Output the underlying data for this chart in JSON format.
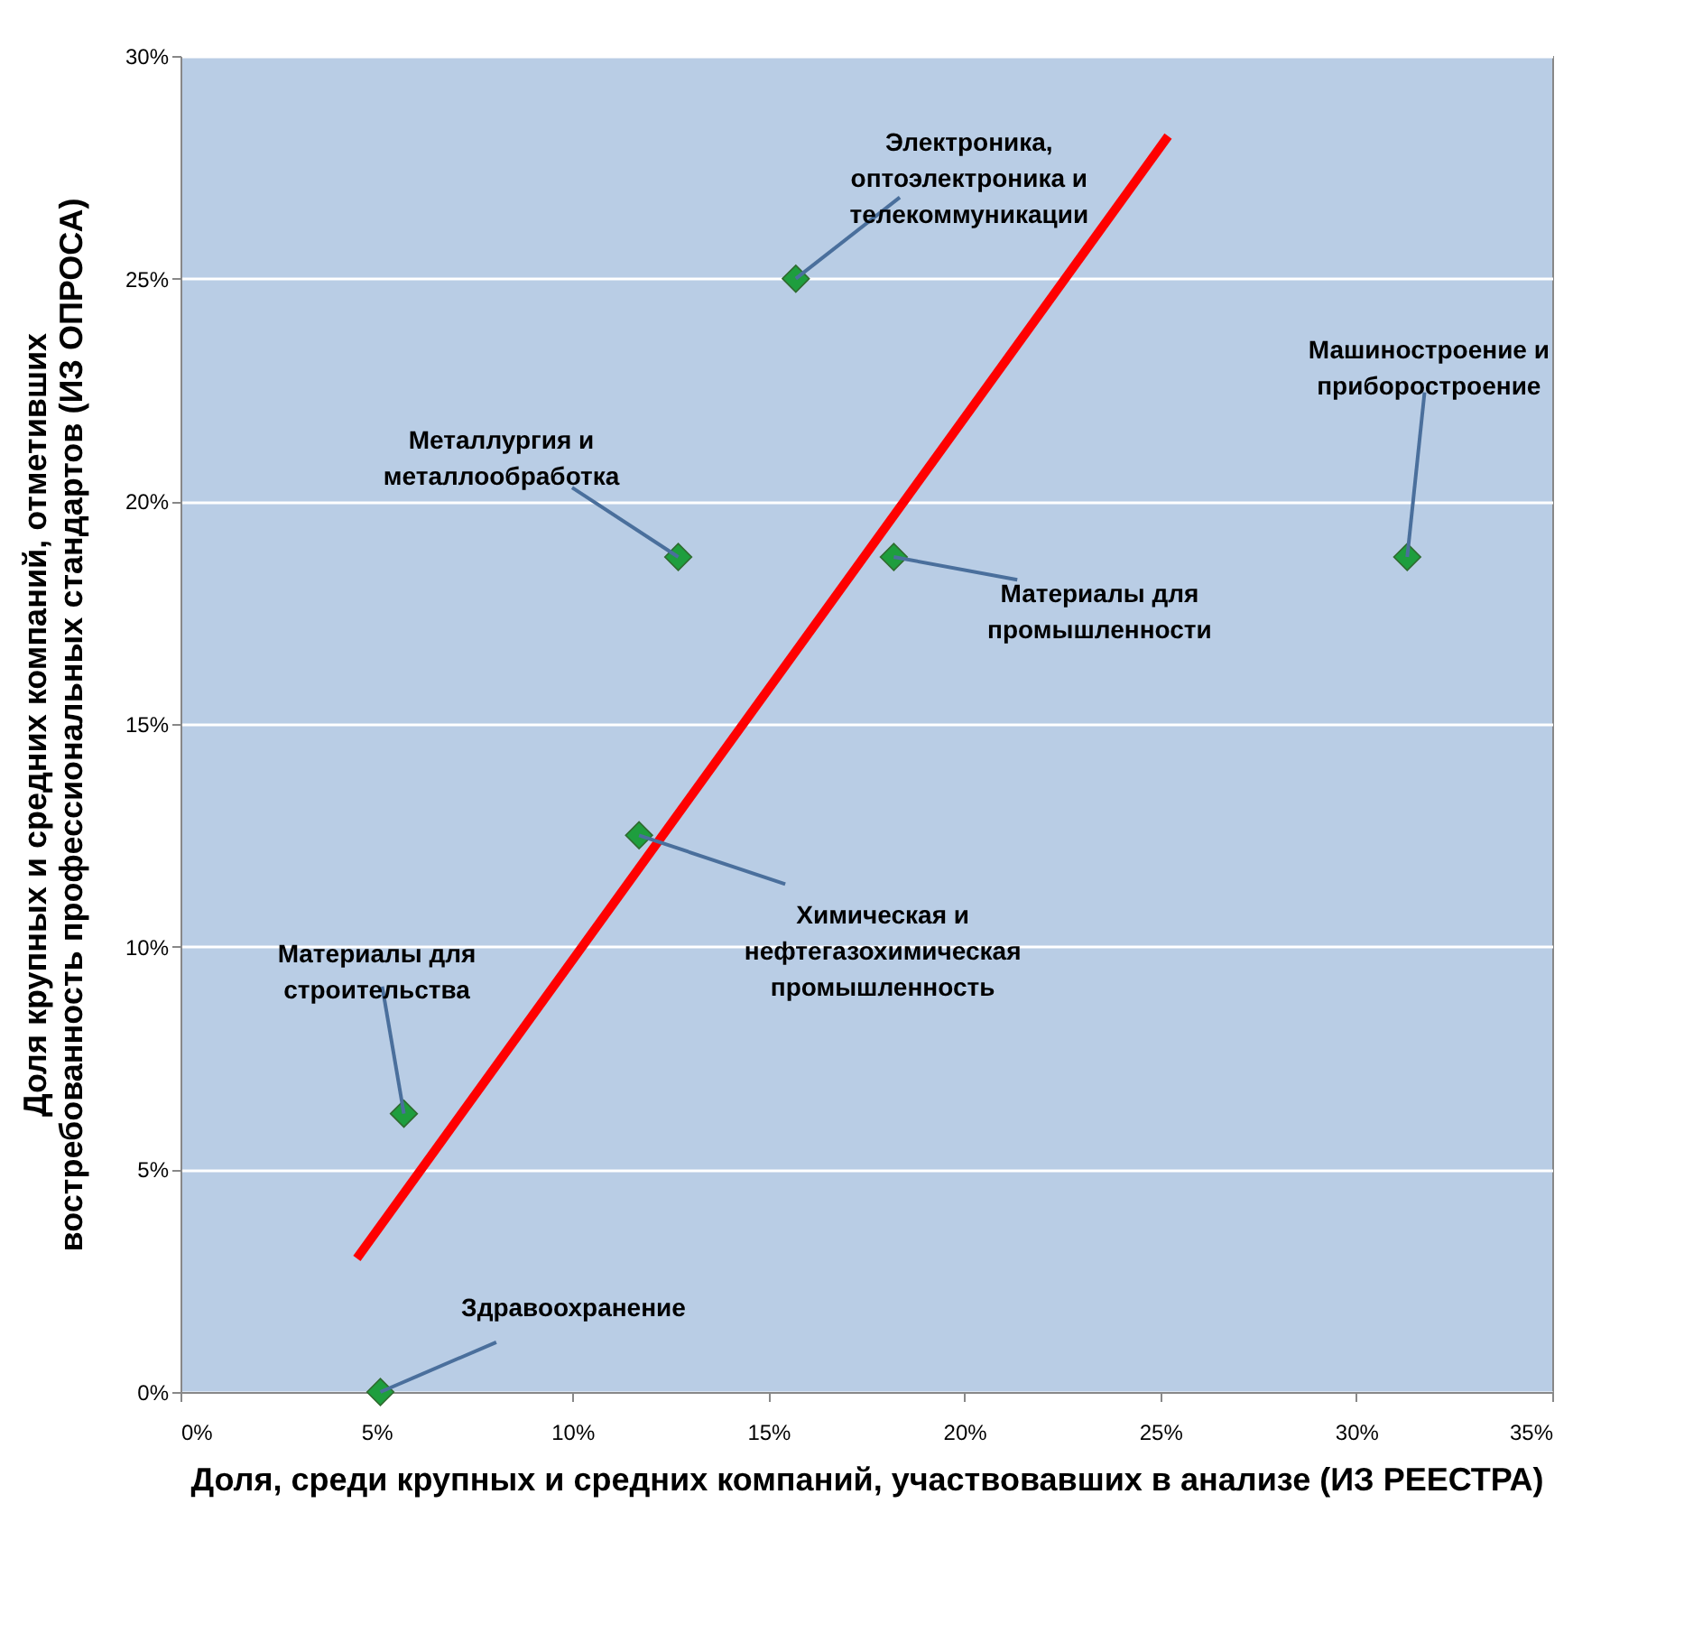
{
  "chart_data": {
    "type": "scatter",
    "xlabel": "Доля, среди крупных и средних  компаний, участвовавших в анализе (ИЗ РЕЕСТРА)",
    "ylabel": "Доля крупных и средних компаний, отметивших\nвостребованность профессиональных стандартов (ИЗ ОПРОСА)",
    "x": [
      5.1,
      5.7,
      12.7,
      11.7,
      15.7,
      18.2,
      31.3
    ],
    "series": [
      {
        "type": "scatter",
        "color": "#1e9e3e",
        "marker": "diamond",
        "values": [
          0,
          6.25,
          18.75,
          12.5,
          25,
          18.75,
          18.75
        ]
      },
      {
        "type": "line",
        "color": "#ff0000",
        "line_style": "solid",
        "x": [
          4.5,
          25.2
        ],
        "values": [
          3.0,
          28.2
        ]
      }
    ],
    "annotations": [
      {
        "text": "Здравоохранение",
        "x": 5.1,
        "y": 0
      },
      {
        "text": "Материалы для\nстроительства",
        "x": 5.7,
        "y": 6.25
      },
      {
        "text": "Металлургия и\nметаллообработка",
        "x": 12.7,
        "y": 18.75
      },
      {
        "text": "Химическая и\nнефтегазохимическая\nпромышленность",
        "x": 11.7,
        "y": 12.5
      },
      {
        "text": "Электроника,\nоптоэлектроника и\nтелекоммуникации",
        "x": 15.7,
        "y": 25
      },
      {
        "text": "Материалы для\nпромышленности",
        "x": 18.2,
        "y": 18.75
      },
      {
        "text": "Машиностроение и\nприборостроение",
        "x": 31.3,
        "y": 18.75
      }
    ],
    "xlim": [
      0,
      35
    ],
    "xticks": [
      {
        "value": 0,
        "label": "0%"
      },
      {
        "value": 5,
        "label": "5%"
      },
      {
        "value": 10,
        "label": "10%"
      },
      {
        "value": 15,
        "label": "15%"
      },
      {
        "value": 20,
        "label": "20%"
      },
      {
        "value": 25,
        "label": "25%"
      },
      {
        "value": 30,
        "label": "30%"
      },
      {
        "value": 35,
        "label": "35%"
      }
    ],
    "ylim": [
      0,
      30
    ],
    "yticks": [
      {
        "value": 0,
        "label": "0%"
      },
      {
        "value": 5,
        "label": "5%"
      },
      {
        "value": 10,
        "label": "10%"
      },
      {
        "value": 15,
        "label": "15%"
      },
      {
        "value": 20,
        "label": "20%"
      },
      {
        "value": 25,
        "label": "25%"
      },
      {
        "value": 30,
        "label": "30%"
      }
    ],
    "grid": "y"
  }
}
